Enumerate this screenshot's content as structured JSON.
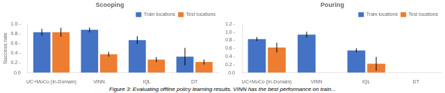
{
  "chart_data": [
    {
      "type": "bar",
      "title": "Scooping",
      "categories": [
        "UC+MoCo (In-Domain)",
        "VINN",
        "IQL",
        "DT"
      ],
      "series": [
        {
          "name": "Train locations",
          "color": "#4472C4",
          "values": [
            0.83,
            0.88,
            0.67,
            0.33
          ],
          "errors": [
            0.07,
            0.05,
            0.08,
            0.18
          ]
        },
        {
          "name": "Test locations",
          "color": "#ED7D31",
          "values": [
            0.83,
            0.38,
            0.27,
            0.22
          ],
          "errors": [
            0.09,
            0.05,
            0.05,
            0.05
          ]
        }
      ],
      "ylabel": "Success rate",
      "ylim": [
        0.0,
        1.0
      ],
      "yticks": [
        {
          "value": 0.0,
          "label": "0.0"
        },
        {
          "value": 0.2,
          "label": "0.2 -"
        },
        {
          "value": 0.4,
          "label": "0.4 -"
        },
        {
          "value": 0.6,
          "label": "0.6 -"
        },
        {
          "value": 0.8,
          "label": "0.8 -"
        },
        {
          "value": 1.0,
          "label": "1.0 -"
        }
      ],
      "grid": false,
      "legend": "upper right"
    },
    {
      "type": "bar",
      "title": "Pouring",
      "categories": [
        "UC+MoCo (In-Domain)",
        "VINN",
        "IQL",
        "DT"
      ],
      "series": [
        {
          "name": "Train locations",
          "color": "#4472C4",
          "values": [
            0.83,
            0.94,
            0.55,
            0.0
          ],
          "errors": [
            0.05,
            0.07,
            0.05,
            0.0
          ]
        },
        {
          "name": "Test locations",
          "color": "#ED7D31",
          "values": [
            0.62,
            null,
            0.22,
            null
          ],
          "errors": [
            0.12,
            null,
            0.17,
            null
          ]
        }
      ],
      "ylim": [
        0.0,
        1.2
      ],
      "yticks": [
        {
          "value": 0.0,
          "label": "0.0"
        },
        {
          "value": 0.2,
          "label": "0.2 -"
        },
        {
          "value": 0.4,
          "label": "0.4 -"
        },
        {
          "value": 0.6,
          "label": "0.6 -"
        },
        {
          "value": 0.8,
          "label": "0.8 -"
        },
        {
          "value": 1.0,
          "label": "1.0 -"
        },
        {
          "value": 1.2,
          "label": "1.2 -"
        }
      ],
      "grid": false,
      "legend": "upper right"
    }
  ],
  "caption": "Figure 3: Evaluating offline policy learning results. VINN has the best performance on train..."
}
